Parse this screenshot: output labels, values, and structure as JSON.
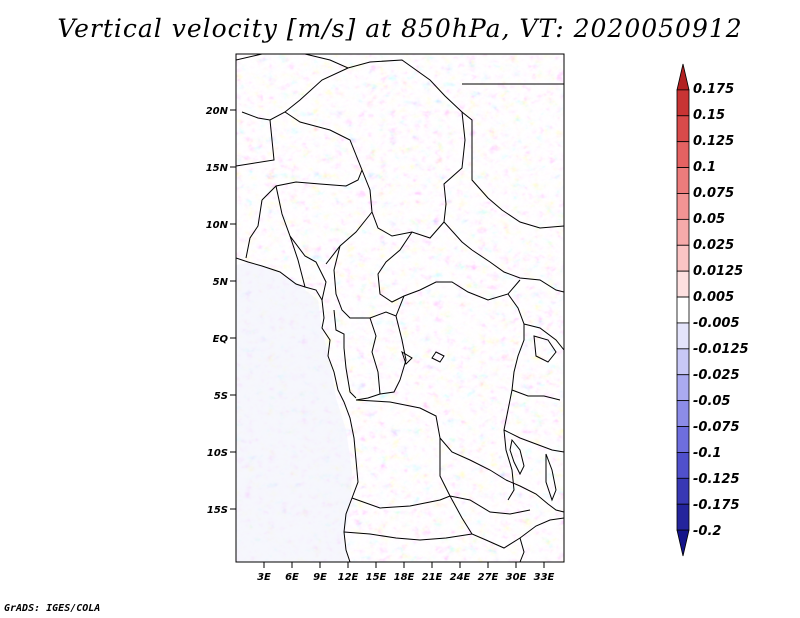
{
  "title": "Vertical velocity [m/s] at 850hPa, VT: 2020050912",
  "credit": "GrADS: IGES/COLA",
  "map": {
    "lat_ticks": [
      "20N",
      "15N",
      "10N",
      "5N",
      "EQ",
      "5S",
      "10S",
      "15S"
    ],
    "lon_ticks": [
      "3E",
      "6E",
      "9E",
      "12E",
      "15E",
      "18E",
      "21E",
      "24E",
      "27E",
      "30E",
      "33E"
    ]
  },
  "colorbar": {
    "labels": [
      "0.175",
      "0.15",
      "0.125",
      "0.1",
      "0.075",
      "0.05",
      "0.025",
      "0.0125",
      "0.005",
      "-0.005",
      "-0.0125",
      "-0.025",
      "-0.05",
      "-0.075",
      "-0.1",
      "-0.125",
      "-0.175",
      "-0.2"
    ],
    "colors": [
      "#b22222",
      "#c83434",
      "#d84a4a",
      "#e46262",
      "#ec7c7c",
      "#f29494",
      "#f6aaaa",
      "#fac4c4",
      "#fde0e0",
      "#ffffff",
      "#e4e4fb",
      "#c8c8f6",
      "#aaaaf0",
      "#8c8ce8",
      "#6e6ede",
      "#5050cc",
      "#3838b4",
      "#24249c",
      "#14148a"
    ]
  }
}
